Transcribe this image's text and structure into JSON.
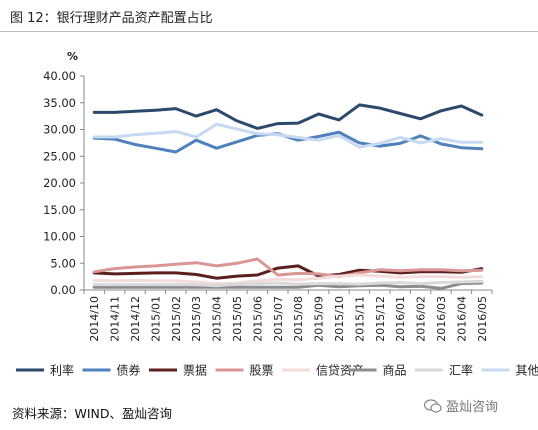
{
  "header": {
    "title": "图 12：银行理财产品资产配置占比"
  },
  "footer": {
    "source": "资料来源：WIND、盈灿咨询",
    "watermark": "盈灿咨询"
  },
  "chart_data": {
    "type": "line",
    "ylabel": "%",
    "ylim": [
      0,
      40
    ],
    "yticks": [
      "0.00",
      "5.00",
      "10.00",
      "15.00",
      "20.00",
      "25.00",
      "30.00",
      "35.00",
      "40.00"
    ],
    "grid": false,
    "legend_position": "bottom",
    "categories": [
      "2014/10",
      "2014/11",
      "2014/12",
      "2015/01",
      "2015/02",
      "2015/03",
      "2015/04",
      "2015/05",
      "2015/06",
      "2015/07",
      "2015/08",
      "2015/09",
      "2015/10",
      "2015/11",
      "2015/12",
      "2016/01",
      "2016/02",
      "2016/03",
      "2016/04",
      "2016/05"
    ],
    "series": [
      {
        "name": "利率",
        "color": "#2b4a6b",
        "values": [
          33.2,
          33.2,
          33.4,
          33.6,
          33.9,
          32.5,
          33.7,
          31.6,
          30.2,
          31.1,
          31.2,
          32.9,
          31.8,
          34.6,
          34.0,
          33.0,
          32.0,
          33.5,
          34.4,
          32.7
        ]
      },
      {
        "name": "债券",
        "color": "#4f81bd",
        "values": [
          28.4,
          28.2,
          27.2,
          26.5,
          25.8,
          28.0,
          26.5,
          27.7,
          28.9,
          29.2,
          28.0,
          28.7,
          29.5,
          27.5,
          26.9,
          27.4,
          28.8,
          27.3,
          26.6,
          26.4
        ]
      },
      {
        "name": "票据",
        "color": "#5b1f1f",
        "values": [
          3.2,
          3.0,
          3.1,
          3.2,
          3.2,
          2.9,
          2.2,
          2.6,
          2.8,
          4.1,
          4.5,
          2.6,
          2.9,
          3.7,
          3.5,
          3.2,
          3.4,
          3.4,
          3.3,
          4.0
        ]
      },
      {
        "name": "股票",
        "color": "#d99694",
        "values": [
          3.4,
          4.0,
          4.3,
          4.5,
          4.8,
          5.1,
          4.5,
          5.0,
          5.8,
          2.8,
          3.1,
          3.0,
          2.5,
          3.2,
          3.8,
          3.6,
          3.8,
          3.8,
          3.6,
          3.7
        ]
      },
      {
        "name": "信贷资产",
        "color": "#f2dcdb",
        "values": [
          1.8,
          1.7,
          1.8,
          1.7,
          1.7,
          1.5,
          1.2,
          1.3,
          1.7,
          2.0,
          1.9,
          2.2,
          2.6,
          2.8,
          2.6,
          2.4,
          2.5,
          2.5,
          2.4,
          2.5
        ]
      },
      {
        "name": "商品",
        "color": "#8c8c8c",
        "values": [
          0.5,
          0.5,
          0.5,
          0.5,
          0.5,
          0.5,
          0.5,
          0.5,
          0.5,
          0.5,
          0.5,
          0.9,
          0.6,
          0.8,
          0.9,
          0.6,
          0.7,
          0.3,
          1.2,
          1.3
        ]
      },
      {
        "name": "汇率",
        "color": "#d9d9d9",
        "values": [
          1.0,
          1.0,
          1.0,
          1.0,
          1.0,
          1.0,
          0.8,
          1.1,
          1.2,
          1.3,
          1.1,
          1.2,
          1.2,
          1.1,
          1.3,
          1.4,
          1.2,
          1.4,
          1.5,
          1.6
        ]
      },
      {
        "name": "其他",
        "color": "#c6d9f0",
        "values": [
          28.6,
          28.6,
          29.0,
          29.3,
          29.6,
          28.6,
          31.0,
          30.1,
          29.2,
          29.0,
          28.5,
          28.0,
          28.9,
          26.7,
          27.4,
          28.5,
          27.5,
          28.3,
          27.6,
          27.6
        ]
      }
    ]
  }
}
